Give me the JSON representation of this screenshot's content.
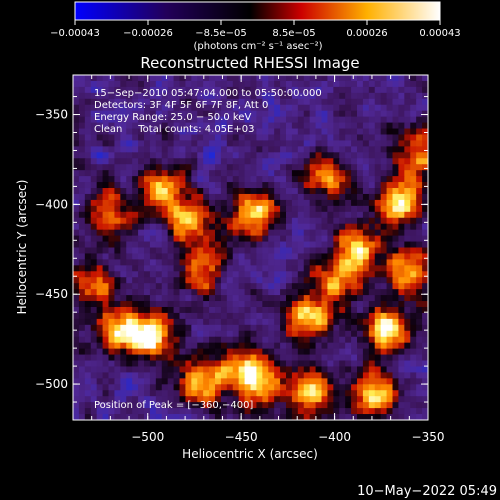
{
  "chart_data": {
    "type": "heatmap",
    "title": "Reconstructed RHESSI Image",
    "xlabel": "Heliocentric X (arcsec)",
    "ylabel": "Heliocentric Y (arcsec)",
    "xlim": [
      -540,
      -350
    ],
    "ylim": [
      -520,
      -328
    ],
    "xticks": [
      -500,
      -450,
      -400,
      -350
    ],
    "yticks": [
      -350,
      -400,
      -450,
      -500
    ],
    "xtick_labels": [
      "−500",
      "−450",
      "−400",
      "−350"
    ],
    "ytick_labels": [
      "−350",
      "−400",
      "−450",
      "−500"
    ],
    "colorbar": {
      "range": [
        -0.00043,
        0.00043
      ],
      "tick_labels": [
        "−0.00043",
        "−0.00026",
        "−8.5e−05",
        "8.5e−05",
        "0.00026",
        "0.00043"
      ],
      "units_label": "(photons cm⁻² s⁻¹ asec⁻²)",
      "colors": [
        "#0000ff",
        "#000000",
        "#ff0000",
        "#ffff00",
        "#ffffff"
      ]
    },
    "annotations": [
      "15−Sep−2010 05:47:04.000 to 05:50:00.000",
      "Detectors: 3F 4F 5F 6F 7F 8F, Att 0",
      "Energy Range: 25.0 − 50.0 keV",
      "Clean     Total counts: 4.05E+03",
      "Position of Peak = [−360,−400]"
    ],
    "peak": [
      -360,
      -400
    ],
    "hotspots": [
      {
        "x": -365,
        "y": -398,
        "w": 1.0
      },
      {
        "x": -442,
        "y": -405,
        "w": 0.9
      },
      {
        "x": -493,
        "y": -392,
        "w": 0.85
      },
      {
        "x": -478,
        "y": -410,
        "w": 0.75
      },
      {
        "x": -515,
        "y": -470,
        "w": 0.8
      },
      {
        "x": -497,
        "y": -473,
        "w": 0.9
      },
      {
        "x": -470,
        "y": -435,
        "w": 0.7
      },
      {
        "x": -450,
        "y": -490,
        "w": 0.7
      },
      {
        "x": -415,
        "y": -463,
        "w": 0.85
      },
      {
        "x": -400,
        "y": -442,
        "w": 0.8
      },
      {
        "x": -387,
        "y": -423,
        "w": 0.8
      },
      {
        "x": -360,
        "y": -438,
        "w": 0.75
      },
      {
        "x": -372,
        "y": -470,
        "w": 0.85
      },
      {
        "x": -380,
        "y": -505,
        "w": 0.9
      },
      {
        "x": -412,
        "y": -505,
        "w": 0.8
      },
      {
        "x": -440,
        "y": -500,
        "w": 0.7
      },
      {
        "x": -473,
        "y": -500,
        "w": 0.8
      },
      {
        "x": -520,
        "y": -405,
        "w": 0.6
      },
      {
        "x": -405,
        "y": -385,
        "w": 0.7
      },
      {
        "x": -355,
        "y": -370,
        "w": 0.8
      },
      {
        "x": -530,
        "y": -445,
        "w": 0.6
      }
    ]
  },
  "footer": {
    "timestamp": "10−May−2022 05:49"
  }
}
